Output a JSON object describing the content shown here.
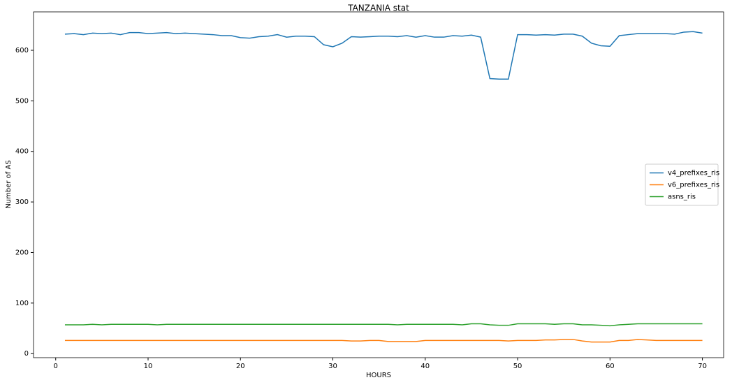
{
  "chart_data": {
    "type": "line",
    "title": "TANZANIA stat",
    "x_label": "HOURS",
    "y_label": "Number of AS",
    "x": [
      1,
      2,
      3,
      4,
      5,
      6,
      7,
      8,
      9,
      10,
      11,
      12,
      13,
      14,
      15,
      16,
      17,
      18,
      19,
      20,
      21,
      22,
      23,
      24,
      25,
      26,
      27,
      28,
      29,
      30,
      31,
      32,
      33,
      34,
      35,
      36,
      37,
      38,
      39,
      40,
      41,
      42,
      43,
      44,
      45,
      46,
      47,
      48,
      49,
      50,
      51,
      52,
      53,
      54,
      55,
      56,
      57,
      58,
      59,
      60,
      61,
      62,
      63,
      64,
      65,
      66,
      67,
      68,
      69,
      70
    ],
    "series": [
      {
        "name": "v4_prefixes_ris",
        "color": "#1f77b4",
        "values": [
          632,
          633,
          631,
          634,
          633,
          634,
          631,
          635,
          635,
          633,
          634,
          635,
          633,
          634,
          633,
          632,
          631,
          629,
          629,
          625,
          624,
          627,
          628,
          631,
          626,
          628,
          628,
          627,
          611,
          607,
          614,
          627,
          626,
          627,
          628,
          628,
          627,
          629,
          626,
          629,
          626,
          626,
          629,
          628,
          630,
          626,
          544,
          543,
          543,
          631,
          631,
          630,
          631,
          630,
          632,
          632,
          628,
          614,
          609,
          608,
          629,
          631,
          633,
          633,
          633,
          633,
          632,
          636,
          637,
          634
        ]
      },
      {
        "name": "v6_prefixes_ris",
        "color": "#ff7f0e",
        "values": [
          26,
          26,
          26,
          26,
          26,
          26,
          26,
          26,
          26,
          26,
          26,
          26,
          26,
          26,
          26,
          26,
          26,
          26,
          26,
          26,
          26,
          26,
          26,
          26,
          26,
          26,
          26,
          26,
          26,
          26,
          26,
          25,
          25,
          26,
          26,
          24,
          24,
          24,
          24,
          26,
          26,
          26,
          26,
          26,
          26,
          26,
          26,
          26,
          25,
          26,
          26,
          26,
          27,
          27,
          28,
          28,
          25,
          23,
          23,
          23,
          26,
          26,
          28,
          27,
          26,
          26,
          26,
          26,
          26,
          26
        ]
      },
      {
        "name": "asns_ris",
        "color": "#2ca02c",
        "values": [
          57,
          57,
          57,
          58,
          57,
          58,
          58,
          58,
          58,
          58,
          57,
          58,
          58,
          58,
          58,
          58,
          58,
          58,
          58,
          58,
          58,
          58,
          58,
          58,
          58,
          58,
          58,
          58,
          58,
          58,
          58,
          58,
          58,
          58,
          58,
          58,
          57,
          58,
          58,
          58,
          58,
          58,
          58,
          57,
          59,
          59,
          57,
          56,
          56,
          59,
          59,
          59,
          59,
          58,
          59,
          59,
          57,
          57,
          56,
          55,
          57,
          58,
          59,
          59,
          59,
          59,
          59,
          59,
          59,
          59
        ]
      }
    ],
    "xlim": [
      -2.4,
      72.3
    ],
    "ylim": [
      -8,
      676
    ],
    "xticks": [
      0,
      10,
      20,
      30,
      40,
      50,
      60,
      70
    ],
    "yticks": [
      0,
      100,
      200,
      300,
      400,
      500,
      600
    ],
    "legend": "center right"
  }
}
